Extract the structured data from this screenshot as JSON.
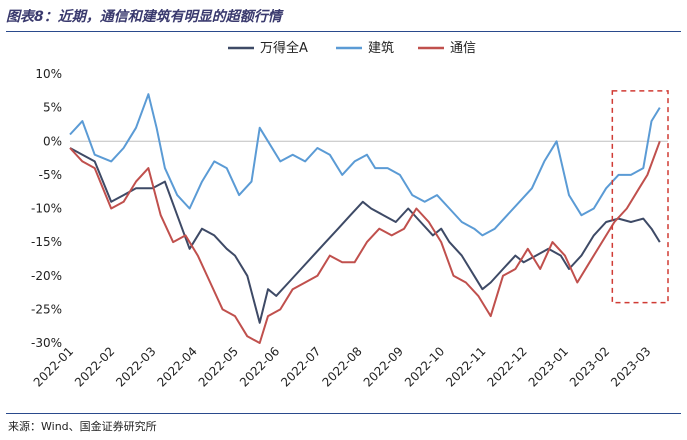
{
  "figure": {
    "title": "图表8：近期，通信和建筑有明显的超额行情",
    "source": "来源：Wind、国金证券研究所"
  },
  "chart_data": {
    "type": "line",
    "title": "近期，通信和建筑有明显的超额行情",
    "xlabel": "",
    "ylabel": "",
    "ylim": [
      -30,
      10
    ],
    "xlim": [
      0,
      14.5
    ],
    "grid": false,
    "legend_position": "top",
    "categories": [
      "2022-01",
      "2022-02",
      "2022-03",
      "2022-04",
      "2022-05",
      "2022-06",
      "2022-07",
      "2022-08",
      "2022-09",
      "2022-10",
      "2022-11",
      "2022-12",
      "2023-01",
      "2023-02",
      "2023-03"
    ],
    "y_tick_labels": [
      "10%",
      "5%",
      "0%",
      "-5%",
      "-10%",
      "-15%",
      "-20%",
      "-25%",
      "-30%"
    ],
    "y_ticks": [
      10,
      5,
      0,
      -5,
      -10,
      -15,
      -20,
      -25,
      -30
    ],
    "annotation": {
      "type": "dashed-box",
      "x_range": [
        13.15,
        14.5
      ],
      "y_range": [
        -24,
        7.5
      ],
      "color": "#d03b34"
    },
    "series": [
      {
        "name": "万得全A",
        "color": "#3e4a66",
        "x": [
          0,
          0.3,
          0.6,
          1.0,
          1.3,
          1.6,
          2.0,
          2.3,
          2.6,
          2.9,
          3.2,
          3.5,
          3.8,
          4.0,
          4.3,
          4.6,
          4.8,
          5.0,
          5.3,
          5.6,
          5.9,
          6.2,
          6.5,
          6.8,
          7.1,
          7.3,
          7.6,
          7.9,
          8.2,
          8.5,
          8.8,
          9.0,
          9.2,
          9.5,
          9.8,
          10.0,
          10.2,
          10.5,
          10.8,
          11.0,
          11.3,
          11.6,
          11.9,
          12.1,
          12.4,
          12.7,
          13.0,
          13.3,
          13.6,
          13.9,
          14.1,
          14.3
        ],
        "values": [
          -1,
          -2,
          -3,
          -9,
          -8,
          -7,
          -7,
          -6,
          -11,
          -16,
          -13,
          -14,
          -16,
          -17,
          -20,
          -27,
          -22,
          -23,
          -21,
          -19,
          -17,
          -15,
          -13,
          -11,
          -9,
          -10,
          -11,
          -12,
          -10,
          -12,
          -14,
          -13,
          -15,
          -17,
          -20,
          -22,
          -21,
          -19,
          -17,
          -18,
          -17,
          -16,
          -17,
          -19,
          -17,
          -14,
          -12,
          -11.5,
          -12,
          -11.5,
          -13,
          -15
        ]
      },
      {
        "name": "建筑",
        "color": "#5b9bd5",
        "x": [
          0,
          0.3,
          0.6,
          1.0,
          1.3,
          1.6,
          1.9,
          2.1,
          2.3,
          2.6,
          2.9,
          3.2,
          3.5,
          3.8,
          4.1,
          4.4,
          4.6,
          4.8,
          5.1,
          5.4,
          5.7,
          6.0,
          6.3,
          6.6,
          6.9,
          7.2,
          7.4,
          7.7,
          8.0,
          8.3,
          8.6,
          8.9,
          9.2,
          9.5,
          9.8,
          10.0,
          10.3,
          10.6,
          10.9,
          11.2,
          11.5,
          11.8,
          12.1,
          12.4,
          12.7,
          13.0,
          13.3,
          13.6,
          13.9,
          14.1,
          14.3
        ],
        "values": [
          1,
          3,
          -2,
          -3,
          -1,
          2,
          7,
          2,
          -4,
          -8,
          -10,
          -6,
          -3,
          -4,
          -8,
          -6,
          2,
          0,
          -3,
          -2,
          -3,
          -1,
          -2,
          -5,
          -3,
          -2,
          -4,
          -4,
          -5,
          -8,
          -9,
          -8,
          -10,
          -12,
          -13,
          -14,
          -13,
          -11,
          -9,
          -7,
          -3,
          0,
          -8,
          -11,
          -10,
          -7,
          -5,
          -5,
          -4,
          3,
          5
        ]
      },
      {
        "name": "通信",
        "color": "#c0504d",
        "x": [
          0,
          0.3,
          0.6,
          1.0,
          1.3,
          1.6,
          1.9,
          2.2,
          2.5,
          2.8,
          3.1,
          3.4,
          3.7,
          4.0,
          4.3,
          4.6,
          4.8,
          5.1,
          5.4,
          5.7,
          6.0,
          6.3,
          6.6,
          6.9,
          7.2,
          7.5,
          7.8,
          8.1,
          8.4,
          8.7,
          9.0,
          9.3,
          9.6,
          9.9,
          10.2,
          10.5,
          10.8,
          11.1,
          11.4,
          11.7,
          12.0,
          12.3,
          12.6,
          12.9,
          13.2,
          13.5,
          13.8,
          14.0,
          14.3
        ],
        "values": [
          -1,
          -3,
          -4,
          -10,
          -9,
          -6,
          -4,
          -11,
          -15,
          -14,
          -17,
          -21,
          -25,
          -26,
          -29,
          -30,
          -26,
          -25,
          -22,
          -21,
          -20,
          -17,
          -18,
          -18,
          -15,
          -13,
          -14,
          -13,
          -10,
          -12,
          -15,
          -20,
          -21,
          -23,
          -26,
          -20,
          -19,
          -16,
          -19,
          -15,
          -17,
          -21,
          -18,
          -15,
          -12,
          -10,
          -7,
          -5,
          0
        ]
      }
    ]
  }
}
